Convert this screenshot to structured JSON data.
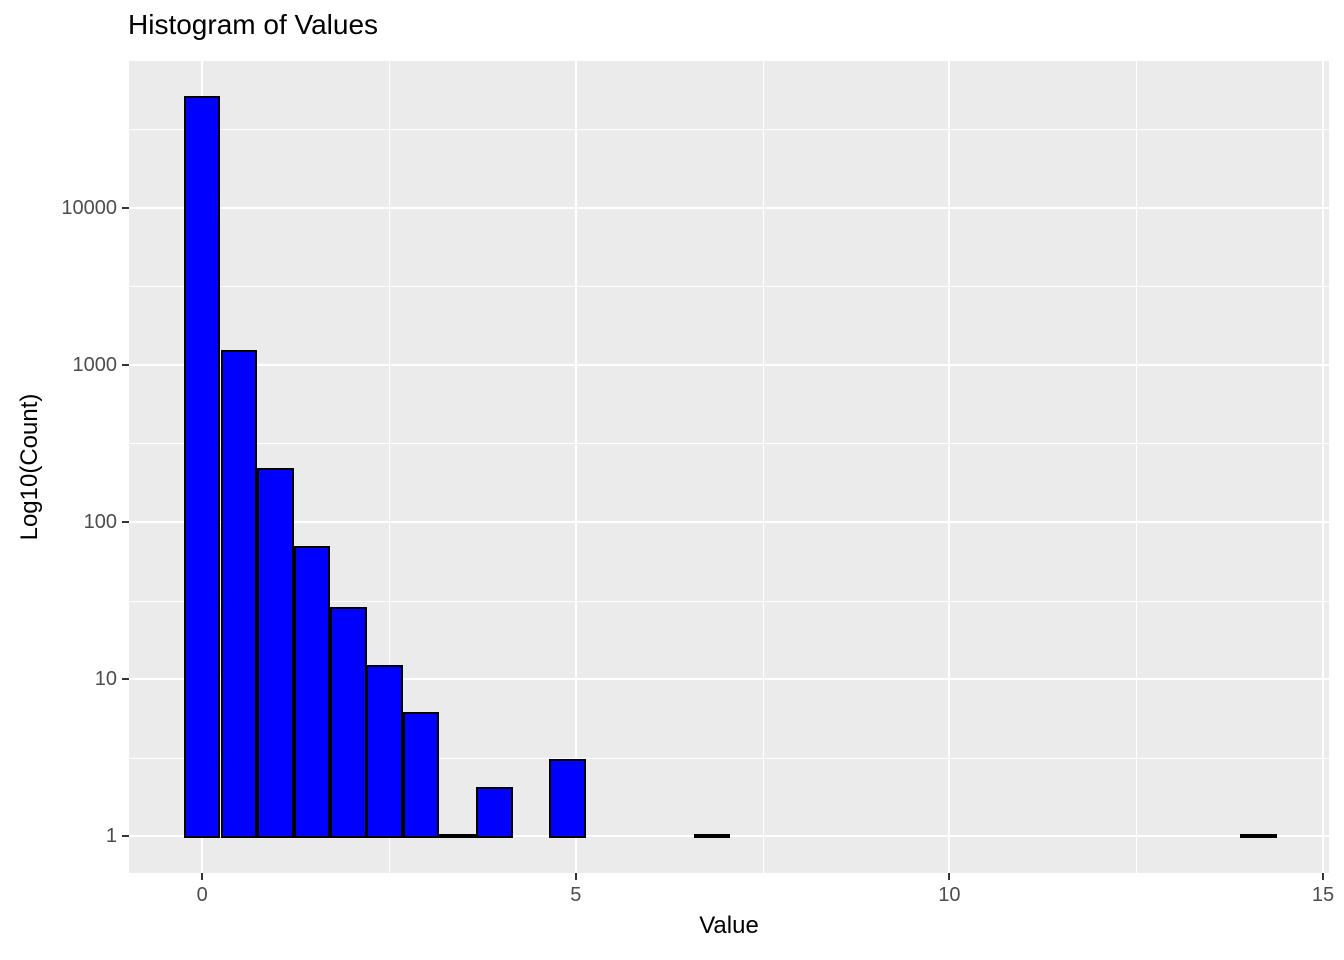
{
  "chart_data": {
    "type": "bar",
    "subtype": "histogram",
    "title": "Histogram of Values",
    "xlabel": "Value",
    "ylabel": "Log10(Count)",
    "y_scale": "log10",
    "bin_width": 0.489,
    "bins": [
      {
        "center": 0.0,
        "count": 50000
      },
      {
        "center": 0.49,
        "count": 1200
      },
      {
        "center": 0.98,
        "count": 215
      },
      {
        "center": 1.47,
        "count": 68
      },
      {
        "center": 1.96,
        "count": 28
      },
      {
        "center": 2.44,
        "count": 12
      },
      {
        "center": 2.93,
        "count": 6
      },
      {
        "center": 3.42,
        "count": 1
      },
      {
        "center": 3.91,
        "count": 2
      },
      {
        "center": 4.89,
        "count": 3
      },
      {
        "center": 6.82,
        "count": 1
      },
      {
        "center": 14.14,
        "count": 1
      }
    ],
    "x_axis": {
      "ticks": [
        0,
        5,
        10,
        15
      ],
      "tick_labels": [
        "0",
        "5",
        "10",
        "15"
      ],
      "minor_ticks": [
        2.5,
        7.5,
        12.5
      ],
      "range": [
        -0.98,
        15.08
      ]
    },
    "y_axis": {
      "ticks": [
        1,
        10,
        100,
        1000,
        10000
      ],
      "tick_labels": [
        "1",
        "10",
        "100",
        "1000",
        "10000"
      ],
      "minor_log_ticks": [
        0.5,
        1.5,
        2.5,
        3.5,
        4.5
      ],
      "log_range": [
        -0.235,
        4.935
      ]
    },
    "grid": true,
    "legend_position": "none"
  },
  "colors": {
    "bar_fill": "#0000FF",
    "bar_stroke": "#000000",
    "panel_bg": "#EBEBEB",
    "grid_line": "#FFFFFF",
    "tick_label": "#4D4D4D",
    "tick_mark": "#333333",
    "axis_title": "#000000",
    "title": "#000000",
    "page_bg": "#FFFFFF"
  }
}
